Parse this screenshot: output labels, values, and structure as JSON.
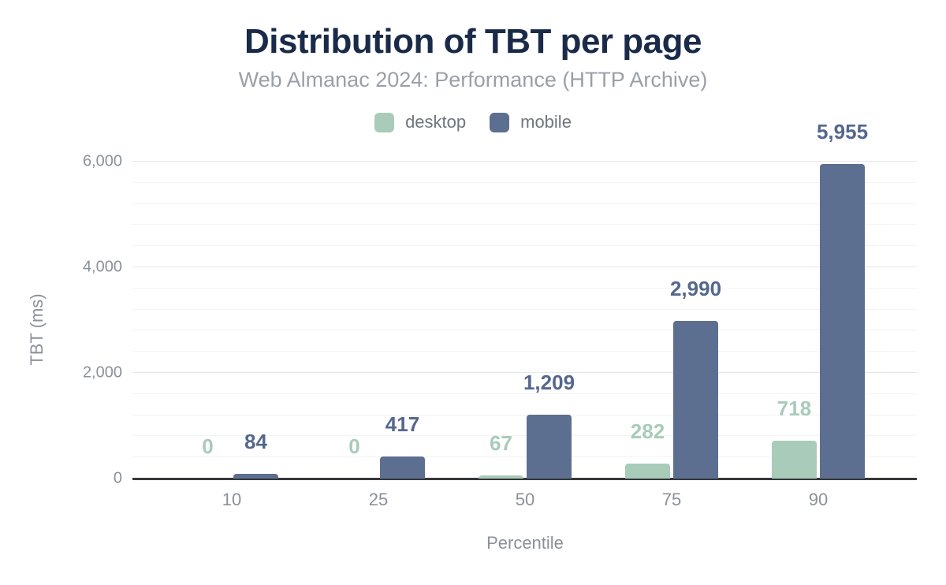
{
  "chart_data": {
    "type": "bar",
    "title": "Distribution of TBT per page",
    "subtitle": "Web Almanac 2024: Performance (HTTP Archive)",
    "xlabel": "Percentile",
    "ylabel": "TBT (ms)",
    "categories": [
      "10",
      "25",
      "50",
      "75",
      "90"
    ],
    "series": [
      {
        "name": "desktop",
        "color": "#a9cbba",
        "label_color": "#a9cbba",
        "values": [
          0,
          0,
          67,
          282,
          718
        ],
        "labels": [
          "0",
          "0",
          "67",
          "282",
          "718"
        ]
      },
      {
        "name": "mobile",
        "color": "#5d6f90",
        "label_color": "#54678d",
        "values": [
          84,
          417,
          1209,
          2990,
          5955
        ],
        "labels": [
          "84",
          "417",
          "1,209",
          "2,990",
          "5,955"
        ]
      }
    ],
    "ylim": [
      0,
      6000
    ],
    "yticks": [
      {
        "value": 0,
        "label": "0"
      },
      {
        "value": 2000,
        "label": "2,000"
      },
      {
        "value": 4000,
        "label": "4,000"
      },
      {
        "value": 6000,
        "label": "6,000"
      }
    ],
    "minor_grid_step": 400,
    "major_grid_step": 2000,
    "grid": "on",
    "legend_position": "top"
  },
  "colors": {
    "background": "#ffffff",
    "title": "#1a2b49",
    "subtitle": "#9aa0a8",
    "legend_label": "#6e757e",
    "axis_label": "#8b9199",
    "axis_line": "#36383b",
    "grid_major": "#e6e7e9",
    "grid_minor": "#f3f3f4"
  }
}
